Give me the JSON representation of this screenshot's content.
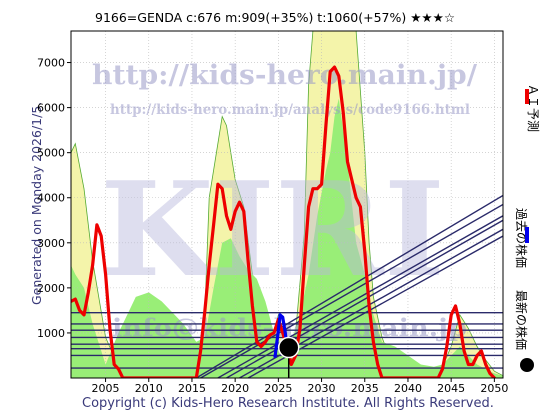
{
  "chart_data": {
    "type": "line",
    "title": "9166=GENDA    c:676  m:909(+35%)  t:1060(+57%)  ★★★☆",
    "xlim": [
      2001,
      2051
    ],
    "ylim": [
      0,
      7700
    ],
    "x_ticks": [
      2005,
      2010,
      2015,
      2020,
      2025,
      2030,
      2035,
      2040,
      2045,
      2050
    ],
    "y_ticks": [
      1000,
      2000,
      3000,
      4000,
      5000,
      6000,
      7000
    ],
    "legend": {
      "ai_forecast": "ＡＩ予測",
      "past_price": "過去の株価",
      "latest_price": "最新の株価"
    },
    "colors": {
      "ai_forecast": "#ee0000",
      "past_price": "#0000ee",
      "latest_price": "#000000",
      "band_green": "#99ee77",
      "band_yellow": "#f4f4aa",
      "grid_lines": "#2a2a6a"
    },
    "band_outer": {
      "x": [
        2001,
        2001.5,
        2002.5,
        2003.5,
        2005,
        2006.5,
        2007.5,
        2008.5,
        2009.5,
        2011,
        2012.5,
        2014,
        2015.5,
        2016.5,
        2017,
        2018.5,
        2019,
        2019.5,
        2020,
        2021,
        2022,
        2023,
        2024,
        2025,
        2026,
        2027,
        2028,
        2028.5,
        2029,
        2030,
        2031,
        2032,
        2033,
        2034,
        2035,
        2035.5,
        2036,
        2037,
        2038,
        2040,
        2042,
        2043.5,
        2044,
        2045,
        2046,
        2047,
        2048,
        2049,
        2050,
        2051
      ],
      "values": [
        5000,
        5200,
        4200,
        2600,
        900,
        250,
        0,
        0,
        0,
        0,
        0,
        0,
        0,
        1500,
        4000,
        5800,
        5600,
        5000,
        4400,
        3800,
        2300,
        1400,
        700,
        1400,
        700,
        1000,
        3200,
        6500,
        7700,
        7700,
        7700,
        7700,
        7700,
        7700,
        5000,
        3000,
        1800,
        900,
        400,
        100,
        50,
        150,
        250,
        700,
        1400,
        1100,
        700,
        400,
        150,
        50
      ]
    },
    "band_inner": {
      "x": [
        2001,
        2001.5,
        2002.5,
        2003.5,
        2005,
        2006.5,
        2007.5,
        2008.5,
        2010,
        2011.5,
        2013,
        2014,
        2015.5,
        2016.5,
        2017.5,
        2018.5,
        2019.5,
        2020.5,
        2021.5,
        2022.5,
        2023.5,
        2024.5,
        2025.5,
        2026.5,
        2027.5,
        2028.5,
        2029.5,
        2030.5,
        2031,
        2031.5,
        2032,
        2033,
        2034,
        2035,
        2036,
        2037,
        2038.5,
        2040,
        2041.5,
        2043,
        2044,
        2045,
        2046,
        2047,
        2048,
        2049,
        2050,
        2051
      ],
      "values": [
        2500,
        2300,
        2000,
        1200,
        300,
        1000,
        1400,
        1800,
        1900,
        1700,
        1400,
        1200,
        800,
        900,
        2000,
        3000,
        3100,
        2700,
        2400,
        2200,
        1700,
        1000,
        700,
        800,
        1400,
        2300,
        3600,
        4600,
        5000,
        5800,
        6200,
        4800,
        3000,
        2300,
        1400,
        800,
        700,
        500,
        300,
        250,
        300,
        500,
        700,
        500,
        300,
        200,
        100,
        50
      ]
    },
    "series": [
      {
        "name": "ＡＩ予測",
        "x": [
          2001,
          2001.5,
          2002,
          2002.5,
          2003,
          2003.5,
          2004,
          2004.5,
          2005,
          2005.5,
          2006,
          2006.5,
          2007,
          2007.5,
          2008,
          2015.5,
          2016,
          2016.5,
          2017,
          2017.5,
          2018,
          2018.5,
          2019,
          2019.5,
          2020,
          2020.5,
          2021,
          2021.5,
          2022,
          2022.5,
          2023,
          2023.5,
          2024,
          2024.5,
          2025,
          2025.5,
          2026,
          2026.5,
          2027,
          2027.5,
          2028,
          2028.5,
          2029,
          2029.5,
          2030,
          2030.5,
          2031,
          2031.5,
          2032,
          2032.5,
          2033,
          2033.5,
          2034,
          2034.5,
          2035,
          2035.5,
          2036,
          2036.5,
          2037,
          2037.5,
          2043.5,
          2044,
          2044.5,
          2045,
          2045.5,
          2046,
          2046.5,
          2047,
          2047.5,
          2048,
          2048.5,
          2049,
          2049.5,
          2050
        ],
        "values": [
          1700,
          1750,
          1500,
          1400,
          1900,
          2500,
          3400,
          3150,
          2300,
          1100,
          300,
          200,
          0,
          0,
          0,
          0,
          600,
          1500,
          2500,
          3400,
          4300,
          4200,
          3600,
          3300,
          3700,
          3900,
          3700,
          2600,
          1600,
          800,
          700,
          800,
          950,
          1000,
          1300,
          1000,
          700,
          300,
          500,
          1100,
          2500,
          3800,
          4200,
          4200,
          4300,
          5600,
          6800,
          6900,
          6700,
          5900,
          4800,
          4400,
          4000,
          3800,
          2800,
          1600,
          800,
          300,
          0,
          0,
          0,
          200,
          700,
          1400,
          1600,
          1200,
          600,
          300,
          300,
          500,
          600,
          300,
          100,
          0
        ]
      },
      {
        "name": "過去の株価",
        "x": [
          2024.6,
          2024.9,
          2025.2,
          2025.5,
          2025.8,
          2026.0
        ],
        "values": [
          450,
          900,
          1400,
          1350,
          1000,
          676
        ]
      }
    ],
    "latest_point": {
      "x": 2026.2,
      "value": 676
    },
    "horizontal_levels": [
      220,
      500,
      650,
      750,
      900,
      1060,
      1200,
      1450
    ],
    "trend_lines": [
      {
        "x": [
          2015.5,
          2051
        ],
        "values": [
          0,
          4050
        ]
      },
      {
        "x": [
          2016,
          2051
        ],
        "values": [
          0,
          3850
        ]
      },
      {
        "x": [
          2018,
          2051
        ],
        "values": [
          0,
          3600
        ]
      },
      {
        "x": [
          2019,
          2051
        ],
        "values": [
          0,
          3500
        ]
      },
      {
        "x": [
          2020.5,
          2051
        ],
        "values": [
          0,
          3300
        ]
      },
      {
        "x": [
          2021.5,
          2051
        ],
        "values": [
          0,
          3150
        ]
      }
    ]
  },
  "watermarks": {
    "url_top": "http://kids-hero.main.jp/",
    "url_mid": "http://kids-hero.main.jp/analysis/code9166.html",
    "big": "KIRI",
    "info": "info@kids-hero.main.jp"
  },
  "side_label": "Generated on Monday 2026/1/5.",
  "footer": "Copyright (c) Kids-Hero Research Institute. All Rights Reserved."
}
